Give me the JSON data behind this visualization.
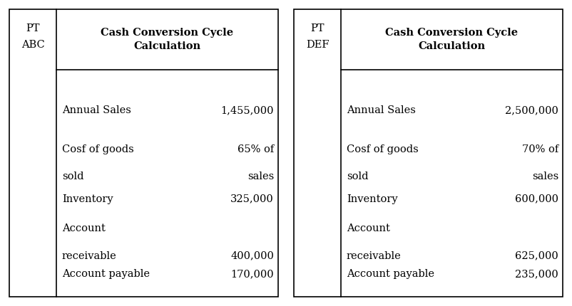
{
  "tables": [
    {
      "pt_label": "PT\nABC",
      "header": "Cash Conversion Cycle\nCalculation",
      "rows": [
        {
          "label": "Annual Sales",
          "value": "1,455,000",
          "label2": null,
          "value2": null
        },
        {
          "label": "Cosf of goods",
          "value": "65% of",
          "label2": "sold",
          "value2": "sales"
        },
        {
          "label": "Inventory",
          "value": "325,000",
          "label2": null,
          "value2": null
        },
        {
          "label": "Account",
          "value": null,
          "label2": "receivable",
          "value2": "400,000"
        },
        {
          "label": "Account payable",
          "value": "170,000",
          "label2": null,
          "value2": null
        }
      ]
    },
    {
      "pt_label": "PT\nDEF",
      "header": "Cash Conversion Cycle\nCalculation",
      "rows": [
        {
          "label": "Annual Sales",
          "value": "2,500,000",
          "label2": null,
          "value2": null
        },
        {
          "label": "Cosf of goods",
          "value": "70% of",
          "label2": "sold",
          "value2": "sales"
        },
        {
          "label": "Inventory",
          "value": "600,000",
          "label2": null,
          "value2": null
        },
        {
          "label": "Account",
          "value": null,
          "label2": "receivable",
          "value2": "625,000"
        },
        {
          "label": "Account payable",
          "value": "235,000",
          "label2": null,
          "value2": null
        }
      ]
    }
  ],
  "fig_width": 8.02,
  "fig_height": 4.3,
  "dpi": 100,
  "bg_color": "#ffffff",
  "border_color": "#000000",
  "text_color": "#000000",
  "header_fontsize": 10.5,
  "body_fontsize": 10.5,
  "pt_fontsize": 10.5,
  "lw": 1.2
}
